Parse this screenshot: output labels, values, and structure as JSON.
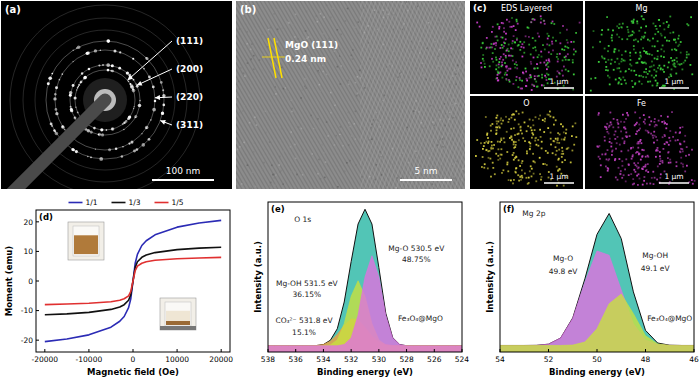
{
  "panels": [
    {
      "label": "(a)",
      "rings": [
        "(111)",
        "(200)",
        "(220)",
        "(311)"
      ],
      "scale_bar": "100 nm"
    },
    {
      "label": "(b)",
      "lattice": "MgO (111)",
      "spacing": "0.24 nm",
      "scale_bar": "5 nm"
    },
    {
      "label": "(c)",
      "maps": [
        {
          "title": "EDS Layered",
          "scale_bar": "1 μm"
        },
        {
          "title": "Mg",
          "scale_bar": "1 μm"
        },
        {
          "title": "O",
          "scale_bar": "1 μm"
        },
        {
          "title": "Fe",
          "scale_bar": "1 μm"
        }
      ]
    }
  ],
  "chart_data": [
    {
      "type": "line",
      "panel_label": "(d)",
      "x_label": "Magnetic field (Oe)",
      "y_label": "Moment (emu)",
      "x": [
        -20000,
        -15000,
        -10000,
        -5000,
        -3000,
        -2000,
        -1000,
        -500,
        0,
        500,
        1000,
        2000,
        3000,
        5000,
        10000,
        15000,
        20000
      ],
      "series": [
        {
          "name": "1/1",
          "color": "#2b2bb5",
          "values": [
            -20.5,
            -19.6,
            -18.2,
            -15.6,
            -13.6,
            -12.0,
            -9.0,
            -6.0,
            0,
            6.0,
            9.0,
            12.0,
            13.6,
            15.6,
            18.2,
            19.6,
            20.5
          ]
        },
        {
          "name": "1/3",
          "color": "#111111",
          "values": [
            -11.4,
            -11.1,
            -10.6,
            -9.6,
            -8.8,
            -8.0,
            -6.5,
            -4.6,
            0,
            4.6,
            6.5,
            8.0,
            8.8,
            9.6,
            10.6,
            11.1,
            11.4
          ]
        },
        {
          "name": "1/5",
          "color": "#e03030",
          "values": [
            -8.0,
            -7.8,
            -7.5,
            -7.0,
            -6.5,
            -6.0,
            -5.0,
            -3.5,
            0,
            3.5,
            5.0,
            6.0,
            6.5,
            7.0,
            7.5,
            7.8,
            8.0
          ]
        }
      ],
      "xlim": [
        -22000,
        22000
      ],
      "ylim": [
        -24,
        24
      ],
      "xticks": [
        -20000,
        -10000,
        0,
        10000,
        20000
      ],
      "yticks": [
        -20,
        -10,
        0,
        10,
        20
      ],
      "grid": false,
      "legend": "top"
    },
    {
      "type": "area",
      "panel_label": "(e)",
      "x_label": "Binding energy (eV)",
      "y_label": "Intensity (a.u.)",
      "x": [
        538,
        537.5,
        537,
        536.5,
        536,
        535.5,
        535,
        534.5,
        534,
        533.5,
        533,
        532.5,
        532,
        531.5,
        531,
        530.5,
        530,
        529.5,
        529,
        528.5,
        528,
        527.5,
        527,
        526.5,
        526,
        525.5,
        525,
        524.5,
        524
      ],
      "series": [
        {
          "color": "#3fbfae",
          "values": [
            5,
            5,
            5,
            5,
            5,
            5,
            5,
            5.2,
            6,
            9.4,
            18.6,
            40,
            72.3,
            102.4,
            114.2,
            102.4,
            67.6,
            31,
            11.5,
            6,
            5,
            5,
            5,
            5,
            5,
            5,
            5,
            5,
            5
          ]
        },
        {
          "color": "#f0a040",
          "values": [
            5,
            5,
            5,
            5,
            5,
            5,
            5,
            5.2,
            6,
            8.7,
            14,
            21.3,
            26.5,
            25.9,
            19.7,
            12.7,
            8,
            5.8,
            5.2,
            5,
            5,
            5,
            5,
            5,
            5,
            5,
            5,
            5,
            5
          ]
        },
        {
          "color": "#c8e040",
          "values": [
            5,
            5,
            5,
            5,
            5,
            5,
            5,
            5,
            5,
            5.7,
            9.6,
            22.7,
            44.5,
            57,
            44.5,
            22.7,
            9.6,
            5.7,
            5,
            5,
            5,
            5,
            5,
            5,
            5,
            5,
            5,
            5,
            5
          ]
        },
        {
          "color": "#e070e0",
          "values": [
            5,
            5,
            5,
            5,
            5,
            5,
            5,
            5,
            5,
            5,
            5,
            6,
            11.3,
            29.5,
            60,
            77,
            60,
            29.5,
            11.3,
            6,
            5,
            5,
            5,
            5,
            5,
            5,
            5,
            5,
            5
          ]
        }
      ],
      "xlim": [
        538,
        524
      ],
      "ylim": [
        0,
        120
      ],
      "xticks": [
        538,
        536,
        534,
        532,
        530,
        528,
        526,
        524
      ],
      "grid": false,
      "tick_labels": "x",
      "annotations": [
        {
          "text": "O 1s",
          "x": 535.5,
          "y": 104
        },
        {
          "text": "Mg-OH 531.5 eV",
          "x": 535.2,
          "y": 53
        },
        {
          "text": "36.15%",
          "x": 535.2,
          "y": 44
        },
        {
          "text": "CO₃²⁻ 531.8 eV",
          "x": 535.4,
          "y": 23
        },
        {
          "text": "15.1%",
          "x": 535.4,
          "y": 14
        },
        {
          "text": "Mg-O 530.5 eV",
          "x": 527.3,
          "y": 81
        },
        {
          "text": "48.75%",
          "x": 527.3,
          "y": 72
        },
        {
          "text": "Fe₃O₄@MgO",
          "x": 527.0,
          "y": 25
        }
      ]
    },
    {
      "type": "area",
      "panel_label": "(f)",
      "x_label": "Binding energy (eV)",
      "y_label": "Intensity (a.u.)",
      "x": [
        54,
        53.5,
        53,
        52.5,
        52,
        51.5,
        51,
        50.5,
        50,
        49.5,
        49,
        48.5,
        48,
        47.5,
        47,
        46.5,
        46
      ],
      "series": [
        {
          "color": "#3fbfae",
          "values": [
            5,
            5,
            5,
            5.1,
            6,
            10.7,
            26.2,
            56.1,
            90.2,
            106.2,
            86.9,
            46.1,
            16.6,
            6.9,
            5.2,
            5,
            5
          ]
        },
        {
          "color": "#e070e0",
          "values": [
            5,
            5,
            5,
            5.1,
            6,
            10.7,
            25.9,
            53.5,
            77.4,
            74.2,
            47.5,
            21.7,
            9.2,
            5.7,
            5.1,
            5,
            5
          ]
        },
        {
          "color": "#c8e040",
          "values": [
            5,
            5,
            5,
            5,
            5,
            5,
            5.3,
            7.6,
            17.8,
            37,
            44.4,
            29.4,
            12.4,
            6.2,
            5.1,
            5,
            5
          ]
        }
      ],
      "xlim": [
        54,
        46
      ],
      "ylim": [
        0,
        115
      ],
      "xticks": [
        54,
        52,
        50,
        48,
        46
      ],
      "grid": false,
      "tick_labels": "x",
      "annotations": [
        {
          "text": "Mg 2p",
          "x": 52.6,
          "y": 104
        },
        {
          "text": "Mg-O",
          "x": 51.4,
          "y": 70
        },
        {
          "text": "49.8 eV",
          "x": 51.4,
          "y": 60
        },
        {
          "text": "Mg-OH",
          "x": 47.6,
          "y": 72
        },
        {
          "text": "49.1 eV",
          "x": 47.6,
          "y": 62
        },
        {
          "text": "Fe₃O₄@MgO",
          "x": 47.0,
          "y": 24
        }
      ]
    }
  ]
}
